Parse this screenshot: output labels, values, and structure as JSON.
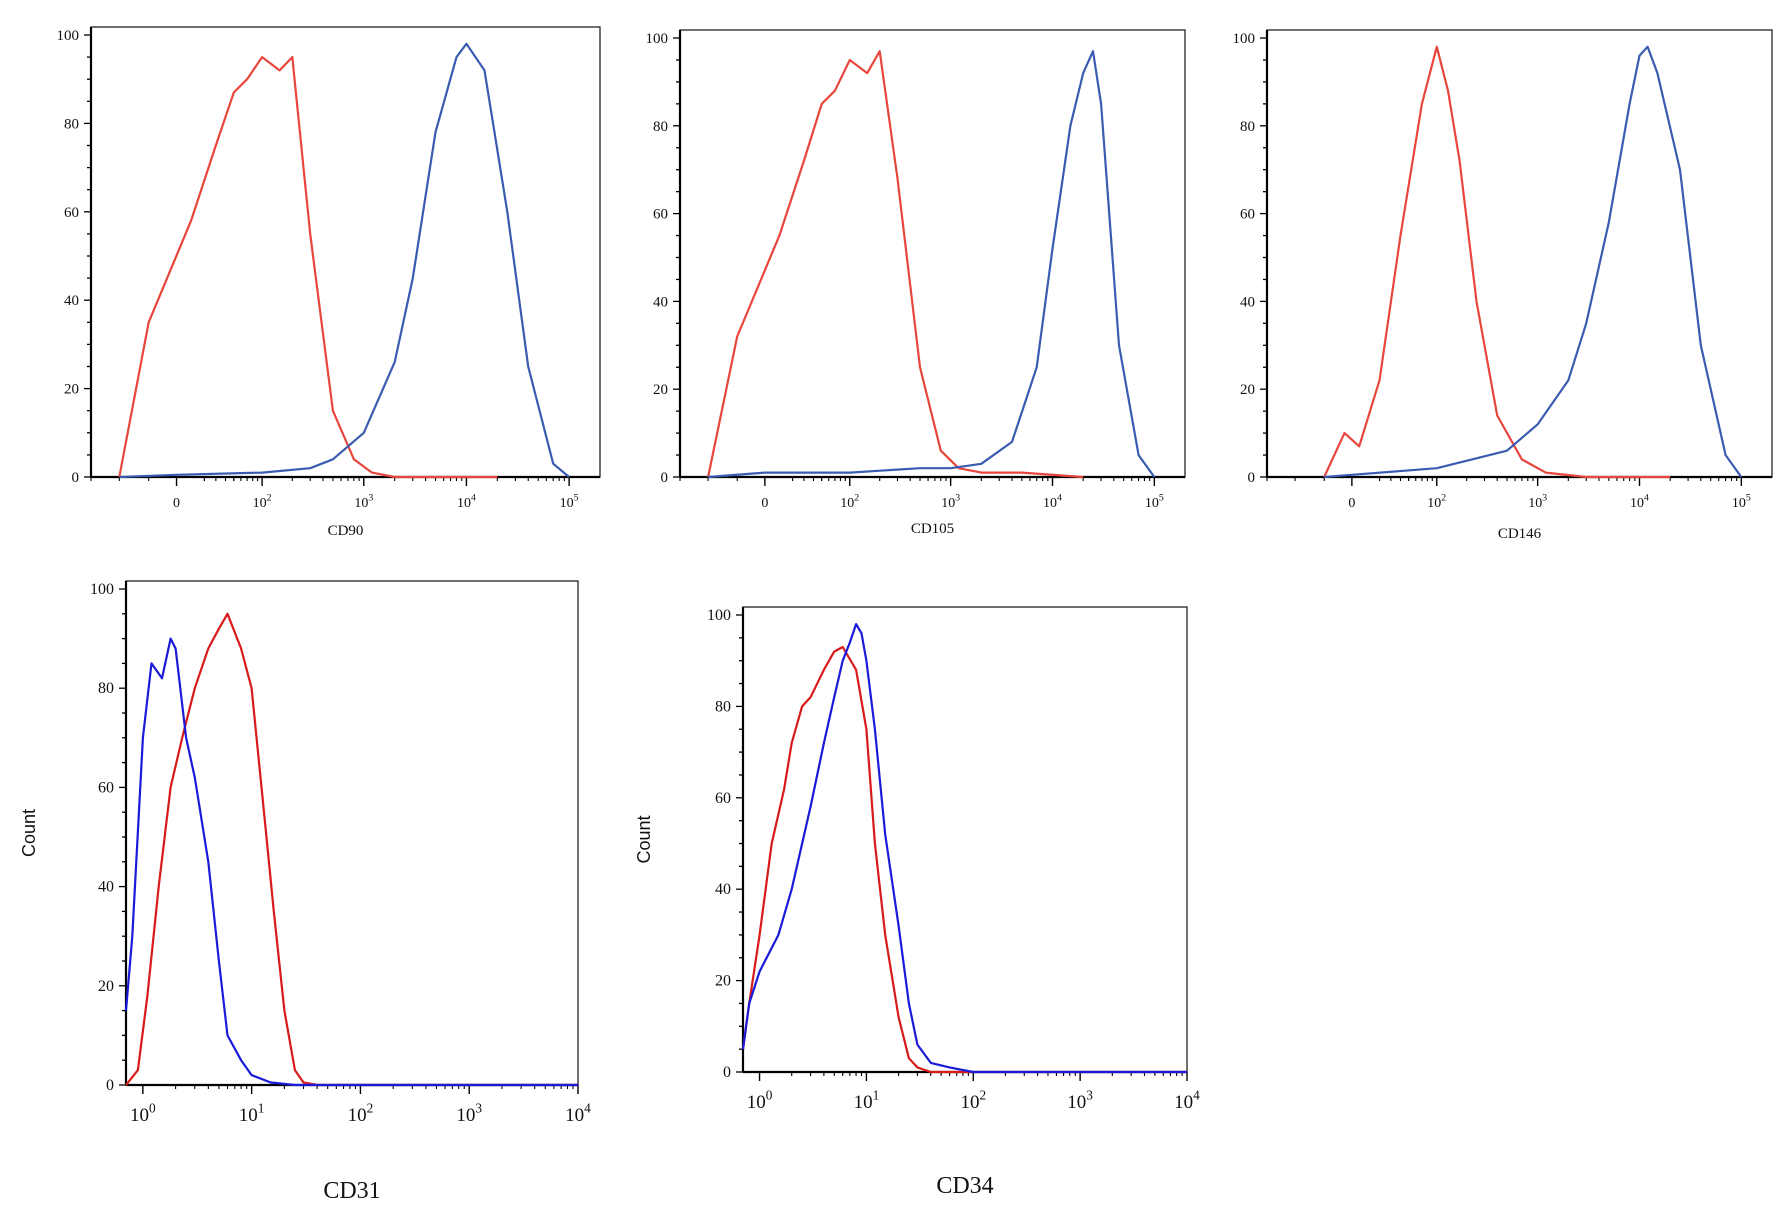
{
  "chart_data": [
    {
      "type": "line",
      "title": "",
      "xlabel": "CD90",
      "ylabel": "",
      "x_scale": "log",
      "ylim": [
        0,
        100
      ],
      "y_ticks": [
        "0",
        "20",
        "40",
        "60",
        "80",
        "100"
      ],
      "x_ticks": [
        {
          "value": 0,
          "base": "0",
          "exp": ""
        },
        {
          "value": 100,
          "base": "10",
          "exp": "2"
        },
        {
          "value": 1000,
          "base": "10",
          "exp": "3"
        },
        {
          "value": 10000,
          "base": "10",
          "exp": "4"
        },
        {
          "value": 100000,
          "base": "10",
          "exp": "5"
        }
      ],
      "grid": false,
      "series": [
        {
          "color": "#e8463c",
          "x": [
            -50,
            -20,
            10,
            30,
            50,
            70,
            100,
            150,
            200,
            300,
            500,
            800,
            1200,
            2000,
            5000,
            20000
          ],
          "y": [
            0,
            35,
            58,
            75,
            87,
            90,
            95,
            92,
            95,
            55,
            15,
            4,
            1,
            0,
            0,
            0
          ]
        },
        {
          "color": "#3a5cb0",
          "x": [
            -50,
            0,
            100,
            300,
            500,
            1000,
            2000,
            3000,
            5000,
            8000,
            10000,
            15000,
            25000,
            40000,
            70000,
            100000
          ],
          "y": [
            0,
            0.5,
            1,
            2,
            4,
            10,
            26,
            45,
            78,
            95,
            98,
            92,
            60,
            25,
            3,
            0
          ]
        }
      ]
    },
    {
      "type": "line",
      "title": "",
      "xlabel": "CD105",
      "ylabel": "",
      "x_scale": "log",
      "ylim": [
        0,
        100
      ],
      "y_ticks": [
        "0",
        "20",
        "40",
        "60",
        "80",
        "100"
      ],
      "x_ticks": [
        {
          "value": 0,
          "base": "0",
          "exp": ""
        },
        {
          "value": 100,
          "base": "10",
          "exp": "2"
        },
        {
          "value": 1000,
          "base": "10",
          "exp": "3"
        },
        {
          "value": 10000,
          "base": "10",
          "exp": "4"
        },
        {
          "value": 100000,
          "base": "10",
          "exp": "5"
        }
      ],
      "grid": false,
      "series": [
        {
          "color": "#e8463c",
          "x": [
            -50,
            -20,
            10,
            30,
            50,
            70,
            100,
            150,
            200,
            300,
            500,
            800,
            1200,
            2000,
            5000,
            20000
          ],
          "y": [
            0,
            32,
            55,
            72,
            85,
            88,
            95,
            92,
            97,
            68,
            25,
            6,
            2,
            1,
            1,
            0
          ]
        },
        {
          "color": "#3a5cb0",
          "x": [
            -50,
            0,
            100,
            500,
            1000,
            2000,
            4000,
            7000,
            10000,
            15000,
            20000,
            25000,
            30000,
            45000,
            70000,
            100000
          ],
          "y": [
            0,
            1,
            1,
            2,
            2,
            3,
            8,
            25,
            52,
            80,
            92,
            97,
            85,
            30,
            5,
            0
          ]
        }
      ]
    },
    {
      "type": "line",
      "title": "",
      "xlabel": "CD146",
      "ylabel": "",
      "x_scale": "log",
      "ylim": [
        0,
        100
      ],
      "y_ticks": [
        "0",
        "20",
        "40",
        "60",
        "80",
        "100"
      ],
      "x_ticks": [
        {
          "value": 0,
          "base": "0",
          "exp": ""
        },
        {
          "value": 100,
          "base": "10",
          "exp": "2"
        },
        {
          "value": 1000,
          "base": "10",
          "exp": "3"
        },
        {
          "value": 10000,
          "base": "10",
          "exp": "4"
        },
        {
          "value": 100000,
          "base": "10",
          "exp": "5"
        }
      ],
      "grid": false,
      "series": [
        {
          "color": "#e8463c",
          "x": [
            -20,
            -5,
            5,
            20,
            40,
            70,
            100,
            130,
            170,
            250,
            400,
            700,
            1200,
            3000,
            20000
          ],
          "y": [
            0,
            10,
            7,
            22,
            55,
            85,
            98,
            88,
            72,
            40,
            14,
            4,
            1,
            0,
            0
          ]
        },
        {
          "color": "#3a5cb0",
          "x": [
            -20,
            0,
            100,
            500,
            1000,
            2000,
            3000,
            5000,
            8000,
            10000,
            12000,
            15000,
            25000,
            40000,
            70000,
            100000
          ],
          "y": [
            0,
            0.5,
            2,
            6,
            12,
            22,
            35,
            58,
            85,
            96,
            98,
            92,
            70,
            30,
            5,
            0
          ]
        }
      ]
    },
    {
      "type": "line",
      "title": "",
      "xlabel": "CD31",
      "ylabel": "Count",
      "x_scale": "log",
      "ylim": [
        0,
        100
      ],
      "y_ticks": [
        "0",
        "20",
        "40",
        "60",
        "80",
        "100"
      ],
      "x_ticks": [
        {
          "value": 1,
          "base": "10",
          "exp": "0"
        },
        {
          "value": 10,
          "base": "10",
          "exp": "1"
        },
        {
          "value": 100,
          "base": "10",
          "exp": "2"
        },
        {
          "value": 1000,
          "base": "10",
          "exp": "3"
        },
        {
          "value": 10000,
          "base": "10",
          "exp": "4"
        }
      ],
      "grid": false,
      "series": [
        {
          "color": "#d81a1a",
          "x": [
            0.7,
            0.9,
            1.1,
            1.4,
            1.8,
            2.3,
            3,
            4,
            5,
            6,
            8,
            10,
            13,
            16,
            20,
            25,
            30,
            40,
            10000
          ],
          "y": [
            0,
            3,
            18,
            40,
            60,
            70,
            80,
            88,
            92,
            95,
            88,
            80,
            55,
            35,
            15,
            3,
            0.5,
            0,
            0
          ]
        },
        {
          "color": "#1a1ad8",
          "x": [
            0.7,
            0.8,
            1,
            1.2,
            1.5,
            1.8,
            2,
            2.5,
            3,
            4,
            5,
            6,
            8,
            10,
            15,
            25,
            10000
          ],
          "y": [
            15,
            30,
            70,
            85,
            82,
            90,
            88,
            70,
            62,
            45,
            25,
            10,
            5,
            2,
            0.5,
            0,
            0
          ]
        }
      ]
    },
    {
      "type": "line",
      "title": "",
      "xlabel": "CD34",
      "ylabel": "Count",
      "x_scale": "log",
      "ylim": [
        0,
        100
      ],
      "y_ticks": [
        "0",
        "20",
        "40",
        "60",
        "80",
        "100"
      ],
      "x_ticks": [
        {
          "value": 1,
          "base": "10",
          "exp": "0"
        },
        {
          "value": 10,
          "base": "10",
          "exp": "1"
        },
        {
          "value": 100,
          "base": "10",
          "exp": "2"
        },
        {
          "value": 1000,
          "base": "10",
          "exp": "3"
        },
        {
          "value": 10000,
          "base": "10",
          "exp": "4"
        }
      ],
      "grid": false,
      "series": [
        {
          "color": "#d81a1a",
          "x": [
            0.7,
            0.8,
            1,
            1.3,
            1.7,
            2,
            2.5,
            3,
            4,
            5,
            6,
            8,
            10,
            12,
            15,
            20,
            25,
            30,
            40,
            10000
          ],
          "y": [
            5,
            15,
            30,
            50,
            62,
            72,
            80,
            82,
            88,
            92,
            93,
            88,
            75,
            50,
            30,
            12,
            3,
            1,
            0,
            0
          ]
        },
        {
          "color": "#1a1ad8",
          "x": [
            0.7,
            0.8,
            1,
            1.5,
            2,
            3,
            4,
            5,
            6,
            7,
            8,
            9,
            10,
            12,
            15,
            20,
            25,
            30,
            40,
            60,
            100,
            10000
          ],
          "y": [
            5,
            15,
            22,
            30,
            40,
            58,
            72,
            82,
            90,
            94,
            98,
            96,
            90,
            75,
            52,
            32,
            15,
            6,
            2,
            1,
            0,
            0
          ]
        }
      ]
    }
  ]
}
